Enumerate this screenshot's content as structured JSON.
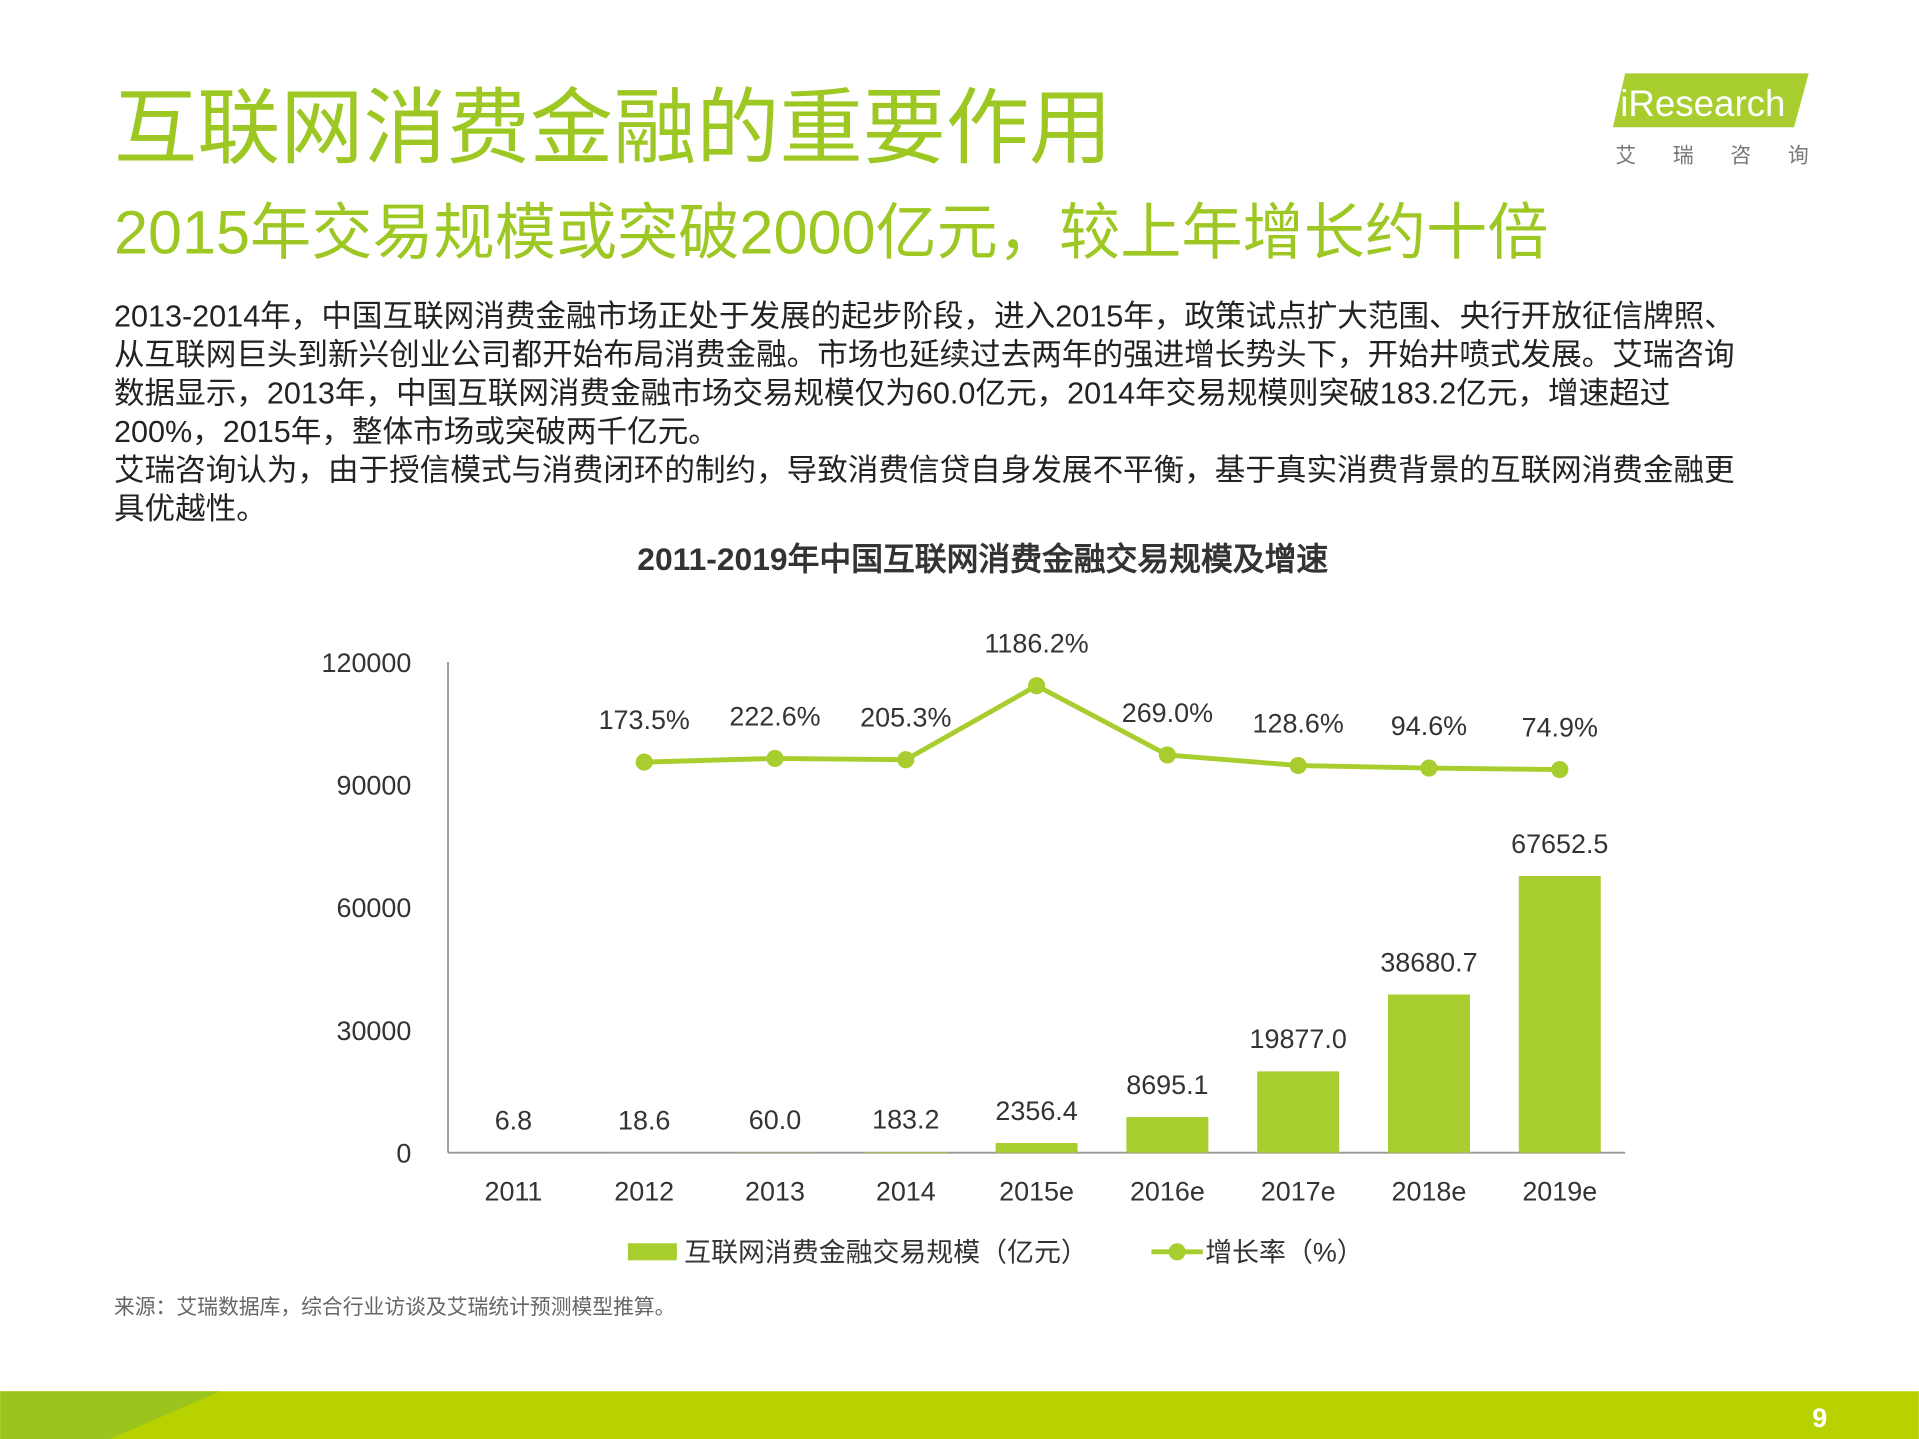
{
  "header": {
    "title": "互联网消费金融的重要作用",
    "subtitle": "2015年交易规模或突破2000亿元，较上年增长约十倍"
  },
  "logo": {
    "brand": "iResearch",
    "name": "艾 瑞 咨 询"
  },
  "body": {
    "paragraphs": [
      [
        "2013-2014年，中国互联网消费金融市场正处于发展的起步阶段，进入2015年，政策试点扩大范围、央行开放征信牌照、",
        "从互联网巨头到新兴创业公司都开始布局消费金融。市场也延续过去两年的强进增长势头下，开始井喷式发展。艾瑞咨询",
        "数据显示，2013年，中国互联网消费金融市场交易规模仅为60.0亿元，2014年交易规模则突破183.2亿元，增速超过",
        "200%，2015年，整体市场或突破两千亿元。"
      ],
      [
        "艾瑞咨询认为，由于授信模式与消费闭环的制约，导致消费信贷自身发展不平衡，基于真实消费背景的互联网消费金融更",
        "具优越性。"
      ]
    ]
  },
  "chart_data": {
    "type": "bar-line",
    "title": "2011-2019年中国互联网消费金融交易规模及增速",
    "categories": [
      "2011",
      "2012",
      "2013",
      "2014",
      "2015e",
      "2016e",
      "2017e",
      "2018e",
      "2019e"
    ],
    "series": [
      {
        "name": "互联网消费金融交易规模（亿元）",
        "type": "bar",
        "color": "#a8cd2f",
        "values": [
          6.8,
          18.6,
          60.0,
          183.2,
          2356.4,
          8695.1,
          19877.0,
          38680.7,
          67652.5
        ],
        "value_labels": [
          "6.8",
          "18.6",
          "60.0",
          "183.2",
          "2356.4",
          "8695.1",
          "19877.0",
          "38680.7",
          "67652.5"
        ]
      },
      {
        "name": "增长率（%）",
        "type": "line",
        "axis": "y2",
        "color": "#a8cd2f",
        "values": [
          null,
          173.5,
          222.6,
          205.3,
          1186.2,
          269.0,
          128.6,
          94.6,
          74.9
        ],
        "value_labels": [
          null,
          "173.5%",
          "222.6%",
          "205.3%",
          "1186.2%",
          "269.0%",
          "128.6%",
          "94.6%",
          "74.9%"
        ]
      }
    ],
    "ylim": [
      0,
      120000
    ],
    "yticks": [
      0,
      30000,
      60000,
      90000,
      120000
    ],
    "y2lim": [
      -5000,
      1500
    ],
    "grid": false,
    "legend": "bottom"
  },
  "source": "来源：艾瑞数据库，综合行业访谈及艾瑞统计预测模型推算。",
  "page_number": "9"
}
